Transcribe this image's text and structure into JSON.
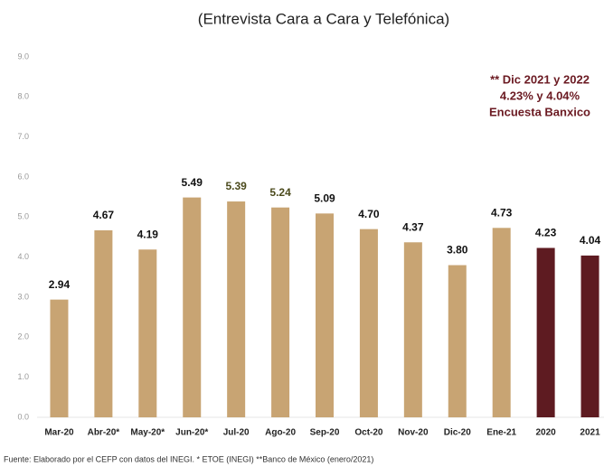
{
  "chart_data": {
    "type": "bar",
    "title": "(Entrevista Cara a Cara y Telefónica)",
    "categories": [
      "Mar-20",
      "Abr-20*",
      "May-20*",
      "Jun-20*",
      "Jul-20",
      "Ago-20",
      "Sep-20",
      "Oct-20",
      "Nov-20",
      "Dic-20",
      "Ene-21",
      "2020",
      "2021"
    ],
    "values": [
      2.94,
      4.67,
      4.19,
      5.49,
      5.39,
      5.24,
      5.09,
      4.7,
      4.37,
      3.8,
      4.73,
      4.23,
      4.04
    ],
    "value_labels": [
      "2.94",
      "4.67",
      "4.19",
      "5.49",
      "5.39",
      "5.24",
      "5.09",
      "4.70",
      "4.37",
      "3.80",
      "4.73",
      "4.23",
      "4.04"
    ],
    "colors": [
      "#c8a473",
      "#c8a473",
      "#c8a473",
      "#c8a473",
      "#c8a473",
      "#c8a473",
      "#c8a473",
      "#c8a473",
      "#c8a473",
      "#c8a473",
      "#c8a473",
      "#5e1b21",
      "#5e1b21"
    ],
    "value_label_colors": [
      "#111",
      "#111",
      "#111",
      "#111",
      "#4b4a1c",
      "#4b4a1c",
      "#111",
      "#111",
      "#111",
      "#111",
      "#111",
      "#111",
      "#111"
    ],
    "ylim": [
      0,
      9
    ],
    "yticks": [
      {
        "value": 0,
        "label": "0.0"
      },
      {
        "value": 1,
        "label": "1.0"
      },
      {
        "value": 2,
        "label": "2.0"
      },
      {
        "value": 3,
        "label": "3.0"
      },
      {
        "value": 4,
        "label": "4.0"
      },
      {
        "value": 5,
        "label": "5.0"
      },
      {
        "value": 6,
        "label": "6.0"
      },
      {
        "value": 7,
        "label": "7.0"
      },
      {
        "value": 8,
        "label": "8.0"
      },
      {
        "value": 9,
        "label": "9.0"
      }
    ],
    "annotation": [
      "** Dic 2021 y 2022",
      "4.23% y 4.04%",
      "Encuesta Banxico"
    ],
    "footnote": "Fuente: Elaborado por el CEFP con datos del INEGI.  * ETOE (INEGI) **Banco de México (enero/2021)"
  }
}
